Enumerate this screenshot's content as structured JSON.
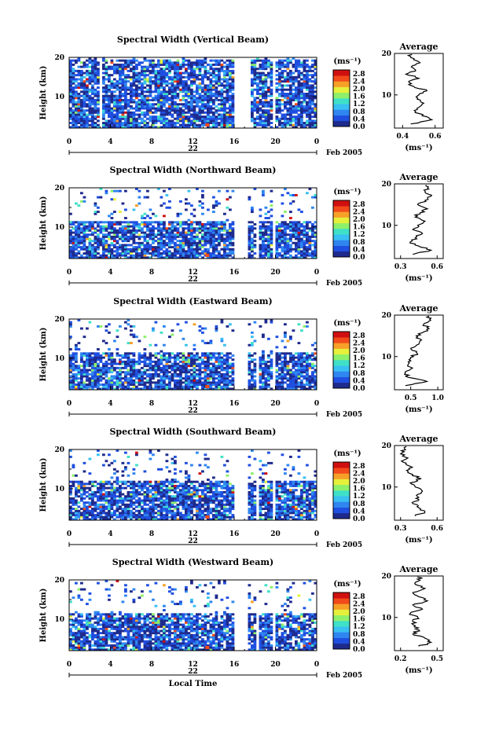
{
  "figure": {
    "xlabel": "Local Time",
    "date_day": "22",
    "date_month": "Feb 2005",
    "ylabel": "Height (km)",
    "cbar_unit": "(ms⁻¹)",
    "avg_title": "Average",
    "avg_unit": "(ms⁻¹)"
  },
  "chart_data": [
    {
      "type": "heatmap",
      "title": "Spectral Width (Vertical Beam)",
      "x_ticks": [
        "0",
        "4",
        "8",
        "12",
        "16",
        "20",
        "0"
      ],
      "y_ticks": [
        "10",
        "20"
      ],
      "xlim": [
        0,
        24
      ],
      "ylim": [
        2,
        20
      ],
      "colorbar_ticks": [
        "0.0",
        "0.4",
        "0.8",
        "1.2",
        "1.6",
        "2.0",
        "2.4",
        "2.8"
      ],
      "colorbar_range": [
        0,
        3.0
      ],
      "data_gaps_hours": [
        [
          3.0,
          3.3
        ],
        [
          16.0,
          17.6
        ],
        [
          18.3,
          18.5
        ],
        [
          19.8,
          20.1
        ]
      ],
      "coverage_top_km": 19.5,
      "annotation": "",
      "average_profile": {
        "x_ticks": [
          "0.4",
          "0.6"
        ],
        "xlim": [
          0.35,
          0.65
        ],
        "y_ticks": [
          "10",
          "20"
        ],
        "ylim": [
          2,
          20
        ],
        "height_km": [
          3,
          4,
          5,
          6,
          7,
          8,
          9,
          10,
          11,
          12,
          13,
          14,
          15,
          16,
          17,
          18,
          19
        ],
        "width_ms": [
          0.45,
          0.58,
          0.52,
          0.48,
          0.5,
          0.53,
          0.49,
          0.5,
          0.55,
          0.47,
          0.44,
          0.5,
          0.42,
          0.48,
          0.46,
          0.5,
          0.45
        ]
      }
    },
    {
      "type": "heatmap",
      "title": "Spectral Width (Northward Beam)",
      "x_ticks": [
        "0",
        "4",
        "8",
        "12",
        "16",
        "20",
        "0"
      ],
      "y_ticks": [
        "10",
        "20"
      ],
      "xlim": [
        0,
        24
      ],
      "ylim": [
        2,
        20
      ],
      "colorbar_ticks": [
        "0.0",
        "0.4",
        "0.8",
        "1.2",
        "1.6",
        "2.0",
        "2.4",
        "2.8"
      ],
      "colorbar_range": [
        0,
        3.0
      ],
      "data_gaps_hours": [
        [
          16.1,
          17.3
        ],
        [
          18.1,
          18.4
        ],
        [
          19.8,
          20.1
        ]
      ],
      "coverage_top_km": 11.5,
      "annotation": "",
      "average_profile": {
        "x_ticks": [
          "0.3",
          "0.6"
        ],
        "xlim": [
          0.25,
          0.65
        ],
        "y_ticks": [
          "10",
          "20"
        ],
        "ylim": [
          2,
          20
        ],
        "height_km": [
          3,
          4,
          5,
          6,
          7,
          8,
          9,
          10,
          11,
          12,
          13,
          14,
          15,
          16,
          17,
          18,
          19
        ],
        "width_ms": [
          0.4,
          0.55,
          0.45,
          0.38,
          0.42,
          0.48,
          0.4,
          0.44,
          0.5,
          0.42,
          0.46,
          0.52,
          0.44,
          0.5,
          0.55,
          0.5,
          0.52
        ]
      }
    },
    {
      "type": "heatmap",
      "title": "Spectral Width (Eastward Beam)",
      "x_ticks": [
        "0",
        "4",
        "8",
        "12",
        "16",
        "20",
        "0"
      ],
      "y_ticks": [
        "10",
        "20"
      ],
      "xlim": [
        0,
        24
      ],
      "ylim": [
        2,
        20
      ],
      "colorbar_ticks": [
        "0.0",
        "0.4",
        "0.8",
        "1.2",
        "1.6",
        "2.0",
        "2.4",
        "2.8"
      ],
      "colorbar_range": [
        0,
        3.0
      ],
      "data_gaps_hours": [
        [
          16.1,
          17.3
        ],
        [
          18.1,
          18.4
        ],
        [
          19.8,
          20.1
        ]
      ],
      "coverage_top_km": 11.5,
      "annotation": "",
      "average_profile": {
        "x_ticks": [
          "0.5",
          "1.0"
        ],
        "xlim": [
          0.2,
          1.1
        ],
        "y_ticks": [
          "10",
          "20"
        ],
        "ylim": [
          2,
          20
        ],
        "height_km": [
          3,
          4,
          5,
          6,
          7,
          8,
          9,
          10,
          11,
          12,
          13,
          14,
          15,
          16,
          17,
          18,
          19
        ],
        "width_ms": [
          0.4,
          0.8,
          0.45,
          0.4,
          0.5,
          0.45,
          0.5,
          0.55,
          0.6,
          0.5,
          0.65,
          0.7,
          0.6,
          0.75,
          0.8,
          0.75,
          0.85
        ]
      }
    },
    {
      "type": "heatmap",
      "title": "Spectral Width (Southward Beam)",
      "x_ticks": [
        "0",
        "4",
        "8",
        "12",
        "16",
        "20",
        "0"
      ],
      "y_ticks": [
        "10",
        "20"
      ],
      "xlim": [
        0,
        24
      ],
      "ylim": [
        2,
        20
      ],
      "colorbar_ticks": [
        "0.0",
        "0.4",
        "0.8",
        "1.2",
        "1.6",
        "2.0",
        "2.4",
        "2.8"
      ],
      "colorbar_range": [
        0,
        3.0
      ],
      "data_gaps_hours": [
        [
          16.1,
          17.3
        ],
        [
          18.1,
          18.4
        ],
        [
          19.8,
          20.1
        ]
      ],
      "coverage_top_km": 12.0,
      "annotation": "",
      "average_profile": {
        "x_ticks": [
          "0.3",
          "0.6"
        ],
        "xlim": [
          0.25,
          0.65
        ],
        "y_ticks": [
          "10",
          "20"
        ],
        "ylim": [
          2,
          20
        ],
        "height_km": [
          3,
          4,
          5,
          6,
          7,
          8,
          9,
          10,
          11,
          12,
          13,
          14,
          15,
          16,
          17,
          18,
          19
        ],
        "width_ms": [
          0.42,
          0.5,
          0.45,
          0.4,
          0.45,
          0.43,
          0.48,
          0.42,
          0.38,
          0.47,
          0.4,
          0.35,
          0.38,
          0.32,
          0.36,
          0.3,
          0.34
        ]
      }
    },
    {
      "type": "heatmap",
      "title": "Spectral Width (Westward Beam)",
      "x_ticks": [
        "0",
        "4",
        "8",
        "12",
        "16",
        "20",
        "0"
      ],
      "y_ticks": [
        "10",
        "20"
      ],
      "xlim": [
        0,
        24
      ],
      "ylim": [
        2,
        20
      ],
      "colorbar_ticks": [
        "0.0",
        "0.4",
        "0.8",
        "1.2",
        "1.6",
        "2.0",
        "2.4",
        "2.8"
      ],
      "colorbar_range": [
        0,
        3.0
      ],
      "data_gaps_hours": [
        [
          16.1,
          17.3
        ],
        [
          18.1,
          18.4
        ],
        [
          19.8,
          20.1
        ]
      ],
      "coverage_top_km": 11.5,
      "annotation": "",
      "average_profile": {
        "x_ticks": [
          "0.2",
          "0.5"
        ],
        "xlim": [
          0.15,
          0.55
        ],
        "y_ticks": [
          "10",
          "20"
        ],
        "ylim": [
          2,
          20
        ],
        "height_km": [
          3,
          4,
          5,
          6,
          7,
          8,
          9,
          10,
          11,
          12,
          13,
          14,
          15,
          16,
          17,
          18,
          19
        ],
        "width_ms": [
          0.35,
          0.45,
          0.4,
          0.3,
          0.35,
          0.32,
          0.3,
          0.34,
          0.28,
          0.38,
          0.3,
          0.42,
          0.35,
          0.3,
          0.4,
          0.32,
          0.36
        ]
      }
    }
  ]
}
